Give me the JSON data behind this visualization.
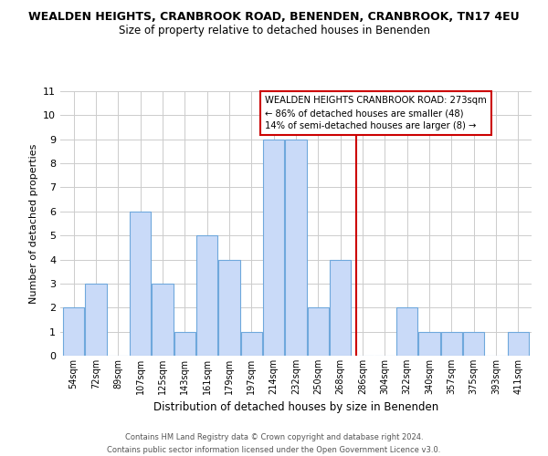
{
  "title": "WEALDEN HEIGHTS, CRANBROOK ROAD, BENENDEN, CRANBROOK, TN17 4EU",
  "subtitle": "Size of property relative to detached houses in Benenden",
  "xlabel": "Distribution of detached houses by size in Benenden",
  "ylabel": "Number of detached properties",
  "bin_labels": [
    "54sqm",
    "72sqm",
    "89sqm",
    "107sqm",
    "125sqm",
    "143sqm",
    "161sqm",
    "179sqm",
    "197sqm",
    "214sqm",
    "232sqm",
    "250sqm",
    "268sqm",
    "286sqm",
    "304sqm",
    "322sqm",
    "340sqm",
    "357sqm",
    "375sqm",
    "393sqm",
    "411sqm"
  ],
  "bar_heights": [
    2,
    3,
    0,
    6,
    3,
    1,
    5,
    4,
    1,
    9,
    9,
    2,
    4,
    0,
    0,
    2,
    1,
    1,
    1,
    0,
    1
  ],
  "bar_color": "#c9daf8",
  "bar_edge_color": "#6fa8dc",
  "grid_color": "#cccccc",
  "bg_color": "#ffffff",
  "red_line_x": 12.73,
  "annotation_title": "WEALDEN HEIGHTS CRANBROOK ROAD: 273sqm",
  "annotation_line1": "← 86% of detached houses are smaller (48)",
  "annotation_line2": "14% of semi-detached houses are larger (8) →",
  "annotation_box_color": "#ffffff",
  "annotation_border_color": "#cc0000",
  "ylim": [
    0,
    11
  ],
  "yticks": [
    0,
    1,
    2,
    3,
    4,
    5,
    6,
    7,
    8,
    9,
    10,
    11
  ],
  "footer1": "Contains HM Land Registry data © Crown copyright and database right 2024.",
  "footer2": "Contains public sector information licensed under the Open Government Licence v3.0."
}
